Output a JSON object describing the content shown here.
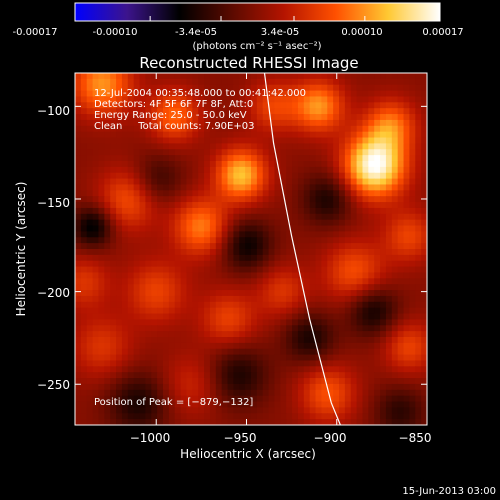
{
  "colorbar": {
    "tick_labels": [
      "-0.00017",
      "-0.00010",
      "-3.4e-05",
      "3.4e-05",
      "0.00010",
      "0.00017"
    ],
    "unit_label": "(photons cm⁻² s⁻¹ asec⁻²)"
  },
  "footer": {
    "timestamp": "15-Jun-2013 03:00"
  },
  "chart_data": {
    "type": "heatmap",
    "title": "Reconstructed RHESSI Image",
    "xlabel": "Heliocentric X (arcsec)",
    "ylabel": "Heliocentric Y (arcsec)",
    "xlim": [
      -1045,
      -850
    ],
    "ylim": [
      -272,
      -82
    ],
    "xticks": [
      -1000,
      -950,
      -900,
      -850
    ],
    "xtick_labels": [
      "−1000",
      "−950",
      "−900",
      "−850"
    ],
    "yticks": [
      -100,
      -150,
      -200,
      -250
    ],
    "ytick_labels": [
      "−100",
      "−150",
      "−200",
      "−250"
    ],
    "color_scale": {
      "min": -0.00017,
      "max": 0.00017,
      "colors": [
        "#0000ff",
        "#3c148c",
        "#000000",
        "#5a0a00",
        "#b41400",
        "#ff5000",
        "#ffc832",
        "#ffffff"
      ]
    },
    "annotations": [
      "12-Jul-2004 00:35:48.000 to 00:41:42.000",
      "Detectors: 4F 5F 6F 7F 8F, Att:0",
      "Energy Range: 25.0 - 50.0 keV",
      "Clean     Total counts: 7.90E+03"
    ],
    "peak_label": "Position of Peak = [−879,−132]",
    "peak": {
      "x": -879,
      "y": -132
    },
    "limb_line": [
      [
        -940,
        -82
      ],
      [
        -935,
        -120
      ],
      [
        -925,
        -170
      ],
      [
        -915,
        -215
      ],
      [
        -903,
        -260
      ],
      [
        -898,
        -272
      ]
    ],
    "sources": [
      {
        "x": -879,
        "y": -132,
        "amp": 0.00017,
        "w": 12
      },
      {
        "x": -953,
        "y": -137,
        "amp": 0.00012,
        "w": 10
      },
      {
        "x": -1030,
        "y": -88,
        "amp": 0.0001,
        "w": 12
      },
      {
        "x": -990,
        "y": -105,
        "amp": 8e-05,
        "w": 10
      },
      {
        "x": -1015,
        "y": -150,
        "amp": 7e-05,
        "w": 12
      },
      {
        "x": -975,
        "y": -165,
        "amp": 9e-05,
        "w": 11
      },
      {
        "x": -935,
        "y": -100,
        "amp": 6e-05,
        "w": 10
      },
      {
        "x": -910,
        "y": -100,
        "amp": 0.0001,
        "w": 10
      },
      {
        "x": -870,
        "y": -110,
        "amp": 8e-05,
        "w": 10
      },
      {
        "x": -860,
        "y": -170,
        "amp": 6e-05,
        "w": 10
      },
      {
        "x": -890,
        "y": -190,
        "amp": 7e-05,
        "w": 12
      },
      {
        "x": -930,
        "y": -200,
        "amp": 5e-05,
        "w": 10
      },
      {
        "x": -1000,
        "y": -200,
        "amp": 6e-05,
        "w": 12
      },
      {
        "x": -1030,
        "y": -230,
        "amp": 5e-05,
        "w": 12
      },
      {
        "x": -960,
        "y": -215,
        "amp": 6e-05,
        "w": 11
      },
      {
        "x": -905,
        "y": -255,
        "amp": 7e-05,
        "w": 11
      },
      {
        "x": -860,
        "y": -230,
        "amp": 6e-05,
        "w": 10
      },
      {
        "x": -980,
        "y": -250,
        "amp": 4e-05,
        "w": 12
      },
      {
        "x": -1040,
        "y": -195,
        "amp": 5e-05,
        "w": 10
      },
      {
        "x": -950,
        "y": -175,
        "amp": -7e-05,
        "w": 10
      },
      {
        "x": -1035,
        "y": -165,
        "amp": -8e-05,
        "w": 8
      },
      {
        "x": -905,
        "y": -150,
        "amp": -6e-05,
        "w": 10
      },
      {
        "x": -880,
        "y": -210,
        "amp": -7e-05,
        "w": 10
      },
      {
        "x": -955,
        "y": -245,
        "amp": -6e-05,
        "w": 12
      },
      {
        "x": -1000,
        "y": -140,
        "amp": -5e-05,
        "w": 10
      },
      {
        "x": -915,
        "y": -225,
        "amp": -6e-05,
        "w": 10
      },
      {
        "x": -1010,
        "y": -260,
        "amp": -6e-05,
        "w": 12
      },
      {
        "x": -865,
        "y": -265,
        "amp": -5e-05,
        "w": 10
      }
    ]
  }
}
